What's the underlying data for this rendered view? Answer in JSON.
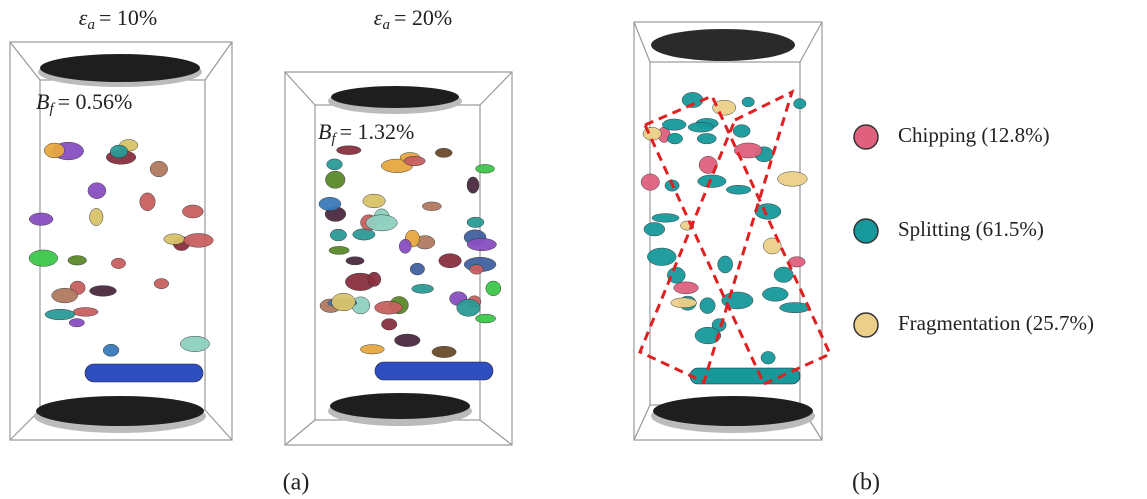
{
  "panels": [
    {
      "strain": {
        "symbol": "ε",
        "subscript": "a",
        "value": "= 10%"
      },
      "breakage": {
        "symbol": "B",
        "subscript": "f",
        "value": "= 0.56%"
      }
    },
    {
      "strain": {
        "symbol": "ε",
        "subscript": "a",
        "value": "= 20%"
      },
      "breakage": {
        "symbol": "B",
        "subscript": "f",
        "value": "= 1.32%"
      }
    }
  ],
  "legend": [
    {
      "label": "Chipping (12.8%)",
      "color": "#e0607e"
    },
    {
      "label": "Splitting (61.5%)",
      "color": "#17999c"
    },
    {
      "label": "Fragmentation (25.7%)",
      "color": "#ecd089"
    }
  ],
  "captions": [
    "(a)",
    "(b)"
  ]
}
